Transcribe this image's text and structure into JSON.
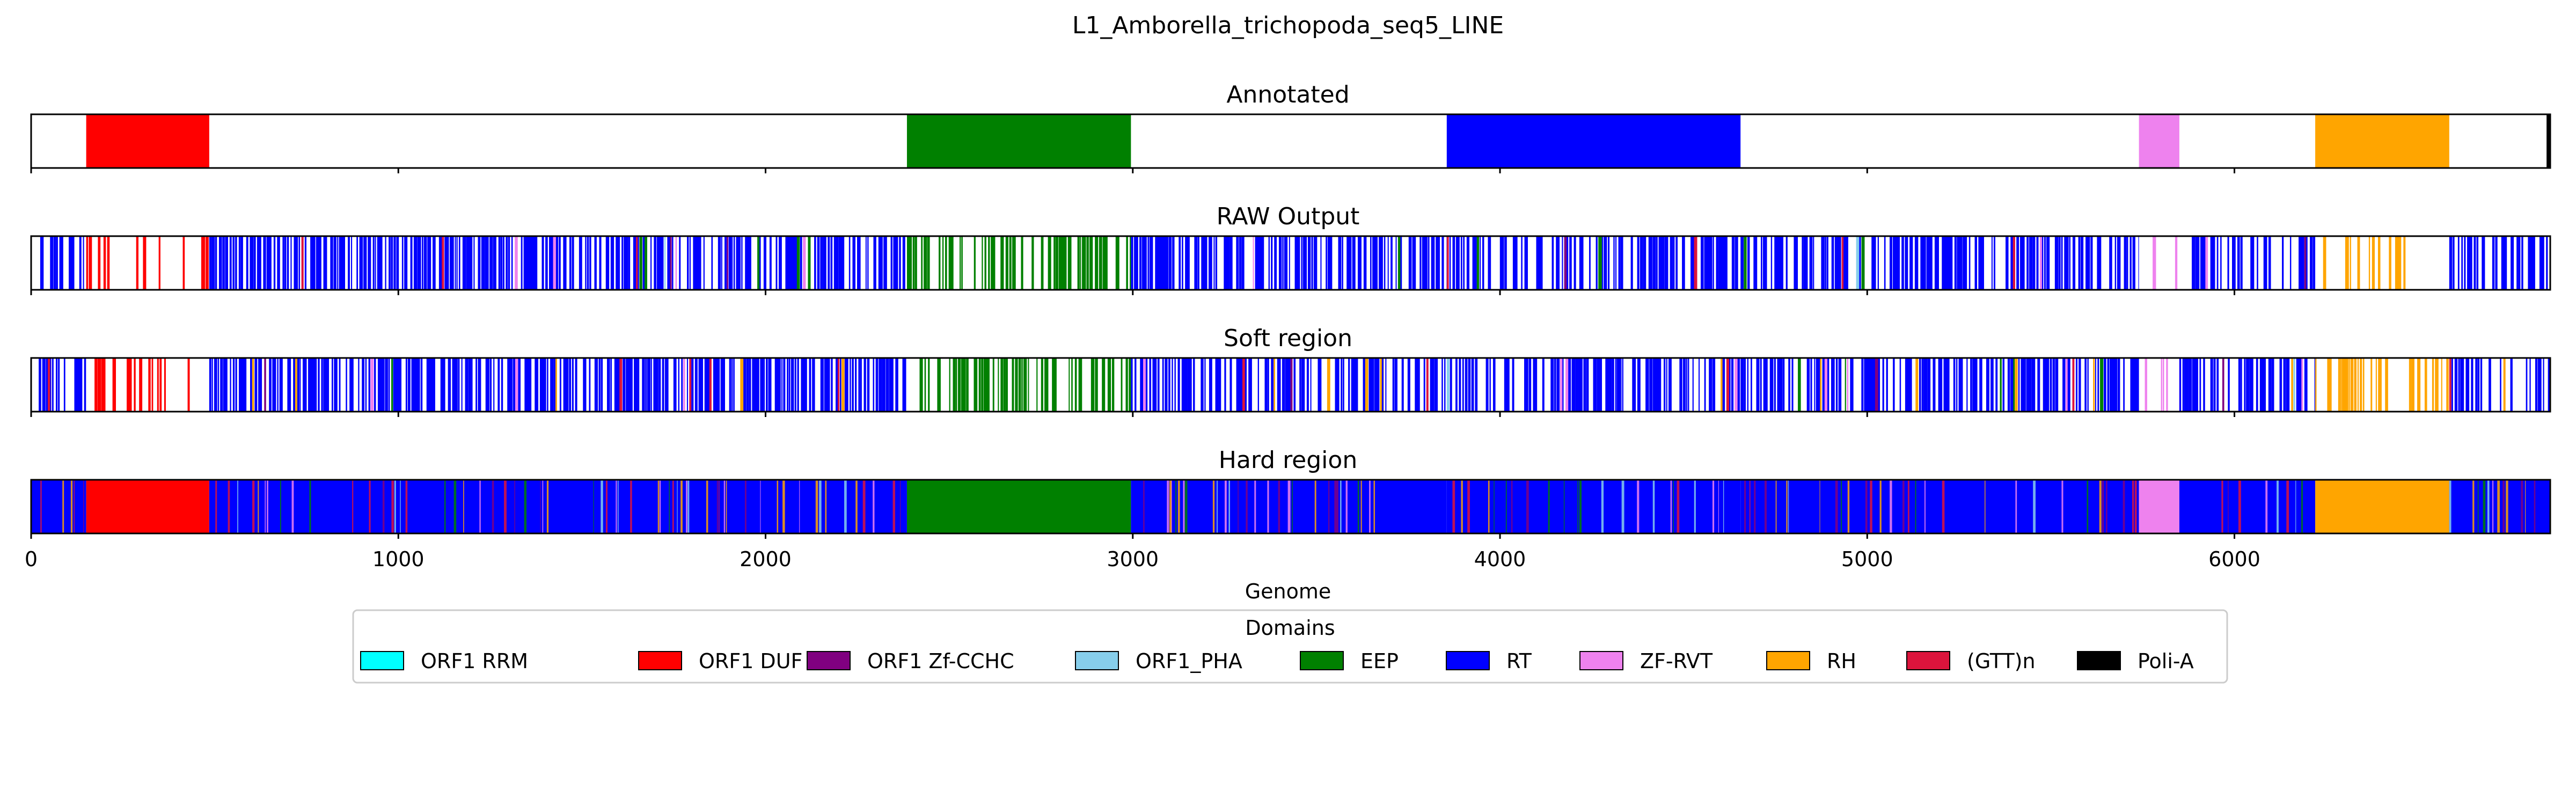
{
  "figure_title": "L1_Amborella_trichopoda_seq5_LINE",
  "chart_data": {
    "type": "genome-domain-tracks",
    "title": "L1_Amborella_trichopoda_seq5_LINE",
    "xlabel": "Genome",
    "xlim": [
      0,
      6860
    ],
    "x_ticks": [
      0,
      1000,
      2000,
      3000,
      4000,
      5000,
      6000
    ],
    "colors": {
      "ORF1 RRM": "#00ffff",
      "ORF1 DUF": "#ff0000",
      "ORF1 Zf-CCHC": "#800080",
      "ORF1_PHA": "#87ceeb",
      "EEP": "#008000",
      "RT": "#0000ff",
      "ZF-RVT": "#ee82ee",
      "RH": "#ffa500",
      "(GTT)n": "#dc143c",
      "Poli-A": "#000000"
    },
    "tracks": [
      {
        "title": "Annotated",
        "segments": [
          {
            "domain": "ORF1 DUF",
            "start": 150,
            "end": 485
          },
          {
            "domain": "EEP",
            "start": 2385,
            "end": 2995
          },
          {
            "domain": "RT",
            "start": 3855,
            "end": 4655
          },
          {
            "domain": "ZF-RVT",
            "start": 5740,
            "end": 5850
          },
          {
            "domain": "RH",
            "start": 6220,
            "end": 6585
          },
          {
            "domain": "Poli-A",
            "start": 6850,
            "end": 6860
          }
        ]
      },
      {
        "title": "RAW Output",
        "segments": [
          {
            "domain": "RT",
            "start": 0,
            "end": 150,
            "density": 0.55
          },
          {
            "domain": "ORF1 DUF",
            "start": 150,
            "end": 485,
            "density": 0.3
          },
          {
            "domain": "RT",
            "start": 485,
            "end": 2385,
            "density": 0.82
          },
          {
            "domain": "EEP",
            "start": 2385,
            "end": 2995,
            "density": 0.6
          },
          {
            "domain": "RT",
            "start": 2995,
            "end": 3855,
            "density": 0.75
          },
          {
            "domain": "RT",
            "start": 3855,
            "end": 4655,
            "density": 0.7
          },
          {
            "domain": "RT",
            "start": 4655,
            "end": 5740,
            "density": 0.78
          },
          {
            "domain": "ZF-RVT",
            "start": 5740,
            "end": 5850,
            "density": 0.35
          },
          {
            "domain": "RT",
            "start": 5850,
            "end": 6220,
            "density": 0.65
          },
          {
            "domain": "RH",
            "start": 6220,
            "end": 6585,
            "density": 0.35
          },
          {
            "domain": "RT",
            "start": 6585,
            "end": 6860,
            "density": 0.7
          }
        ]
      },
      {
        "title": "Soft region",
        "segments": [
          {
            "domain": "RT",
            "start": 0,
            "end": 150,
            "density": 0.55
          },
          {
            "domain": "ORF1 DUF",
            "start": 150,
            "end": 485,
            "density": 0.3
          },
          {
            "domain": "RT",
            "start": 485,
            "end": 2385,
            "density": 0.82
          },
          {
            "domain": "EEP",
            "start": 2385,
            "end": 2995,
            "density": 0.6
          },
          {
            "domain": "RT",
            "start": 2995,
            "end": 3855,
            "density": 0.75
          },
          {
            "domain": "RT",
            "start": 3855,
            "end": 4655,
            "density": 0.7
          },
          {
            "domain": "RT",
            "start": 4655,
            "end": 5740,
            "density": 0.78
          },
          {
            "domain": "ZF-RVT",
            "start": 5740,
            "end": 5850,
            "density": 0.35
          },
          {
            "domain": "RT",
            "start": 5850,
            "end": 6220,
            "density": 0.65
          },
          {
            "domain": "RH",
            "start": 6220,
            "end": 6585,
            "density": 0.35
          },
          {
            "domain": "RT",
            "start": 6585,
            "end": 6860,
            "density": 0.7
          }
        ]
      },
      {
        "title": "Hard region",
        "segments": [
          {
            "domain": "RT",
            "start": 0,
            "end": 150
          },
          {
            "domain": "ORF1 DUF",
            "start": 150,
            "end": 485
          },
          {
            "domain": "RT",
            "start": 485,
            "end": 2385
          },
          {
            "domain": "EEP",
            "start": 2385,
            "end": 2995
          },
          {
            "domain": "RT",
            "start": 2995,
            "end": 3855
          },
          {
            "domain": "RT",
            "start": 3855,
            "end": 4655
          },
          {
            "domain": "RT",
            "start": 4655,
            "end": 5740
          },
          {
            "domain": "ZF-RVT",
            "start": 5740,
            "end": 5850
          },
          {
            "domain": "RT",
            "start": 5850,
            "end": 6220
          },
          {
            "domain": "RH",
            "start": 6220,
            "end": 6585
          },
          {
            "domain": "RT",
            "start": 6585,
            "end": 6860
          }
        ]
      }
    ],
    "legend": {
      "title": "Domains",
      "placement": "bottom-center",
      "entries": [
        "ORF1 RRM",
        "ORF1 DUF",
        "ORF1 Zf-CCHC",
        "ORF1_PHA",
        "EEP",
        "RT",
        "ZF-RVT",
        "RH",
        "(GTT)n",
        "Poli-A"
      ]
    }
  }
}
